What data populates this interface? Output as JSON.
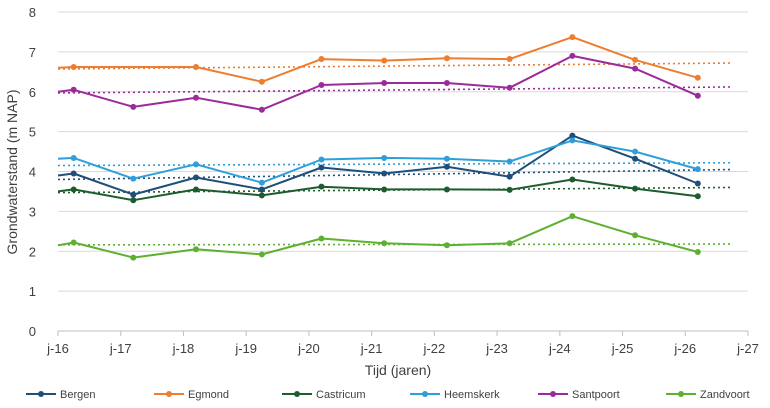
{
  "chart_data": {
    "type": "line",
    "title": "",
    "xlabel": "Tijd (jaren)",
    "ylabel": "Grondwaterstand (m NAP)",
    "ylim": [
      0,
      8
    ],
    "yticks": [
      0,
      1,
      2,
      3,
      4,
      5,
      6,
      7,
      8
    ],
    "xlim": [
      2016,
      2027
    ],
    "xticks": [
      {
        "year": 2016,
        "label": "j-16"
      },
      {
        "year": 2017,
        "label": "j-17"
      },
      {
        "year": 2018,
        "label": "j-18"
      },
      {
        "year": 2019,
        "label": "j-19"
      },
      {
        "year": 2020,
        "label": "j-20"
      },
      {
        "year": 2021,
        "label": "j-21"
      },
      {
        "year": 2022,
        "label": "j-22"
      },
      {
        "year": 2023,
        "label": "j-23"
      },
      {
        "year": 2024,
        "label": "j-24"
      },
      {
        "year": 2025,
        "label": "j-25"
      },
      {
        "year": 2026,
        "label": "j-26"
      },
      {
        "year": 2027,
        "label": "j-27"
      }
    ],
    "grid": "horizontal",
    "legend": "bottom",
    "series": [
      {
        "name": "Bergen",
        "color": "#1f4e79",
        "points": [
          [
            2016.0,
            3.9
          ],
          [
            2016.25,
            3.95
          ],
          [
            2017.2,
            3.42
          ],
          [
            2018.2,
            3.85
          ],
          [
            2019.25,
            3.55
          ],
          [
            2020.2,
            4.1
          ],
          [
            2021.2,
            3.95
          ],
          [
            2022.2,
            4.12
          ],
          [
            2023.2,
            3.87
          ],
          [
            2024.2,
            4.9
          ],
          [
            2025.2,
            4.32
          ],
          [
            2026.2,
            3.7
          ]
        ],
        "trend": [
          3.8,
          4.05
        ]
      },
      {
        "name": "Egmond",
        "color": "#ed7d31",
        "points": [
          [
            2016.0,
            6.6
          ],
          [
            2016.25,
            6.62
          ],
          [
            2018.2,
            6.62
          ],
          [
            2019.25,
            6.25
          ],
          [
            2020.2,
            6.82
          ],
          [
            2021.2,
            6.78
          ],
          [
            2022.2,
            6.84
          ],
          [
            2023.2,
            6.82
          ],
          [
            2024.2,
            7.37
          ],
          [
            2025.2,
            6.8
          ],
          [
            2026.2,
            6.35
          ]
        ],
        "trend": [
          6.57,
          6.72
        ]
      },
      {
        "name": "Castricum",
        "color": "#1e5c2e",
        "points": [
          [
            2016.0,
            3.5
          ],
          [
            2016.25,
            3.55
          ],
          [
            2017.2,
            3.28
          ],
          [
            2018.2,
            3.55
          ],
          [
            2019.25,
            3.4
          ],
          [
            2020.2,
            3.62
          ],
          [
            2021.2,
            3.55
          ],
          [
            2022.2,
            3.55
          ],
          [
            2023.2,
            3.54
          ],
          [
            2024.2,
            3.8
          ],
          [
            2025.2,
            3.57
          ],
          [
            2026.2,
            3.38
          ]
        ],
        "trend": [
          3.47,
          3.6
        ]
      },
      {
        "name": "Heemskerk",
        "color": "#2e9fd9",
        "points": [
          [
            2016.0,
            4.32
          ],
          [
            2016.25,
            4.34
          ],
          [
            2017.2,
            3.82
          ],
          [
            2018.2,
            4.18
          ],
          [
            2019.25,
            3.72
          ],
          [
            2020.2,
            4.3
          ],
          [
            2021.2,
            4.34
          ],
          [
            2022.2,
            4.32
          ],
          [
            2023.2,
            4.25
          ],
          [
            2024.2,
            4.78
          ],
          [
            2025.2,
            4.5
          ],
          [
            2026.2,
            4.06
          ]
        ],
        "trend": [
          4.15,
          4.22
        ]
      },
      {
        "name": "Santpoort",
        "color": "#9b2b9b",
        "points": [
          [
            2016.0,
            6.0
          ],
          [
            2016.25,
            6.05
          ],
          [
            2017.2,
            5.62
          ],
          [
            2018.2,
            5.85
          ],
          [
            2019.25,
            5.55
          ],
          [
            2020.2,
            6.17
          ],
          [
            2021.2,
            6.22
          ],
          [
            2022.2,
            6.22
          ],
          [
            2023.2,
            6.1
          ],
          [
            2024.2,
            6.9
          ],
          [
            2025.2,
            6.58
          ],
          [
            2026.2,
            5.9
          ]
        ],
        "trend": [
          5.97,
          6.12
        ]
      },
      {
        "name": "Zandvoort",
        "color": "#5db030",
        "points": [
          [
            2016.0,
            2.15
          ],
          [
            2016.25,
            2.22
          ],
          [
            2017.2,
            1.84
          ],
          [
            2018.2,
            2.05
          ],
          [
            2019.25,
            1.92
          ],
          [
            2020.2,
            2.32
          ],
          [
            2021.2,
            2.2
          ],
          [
            2022.2,
            2.15
          ],
          [
            2023.2,
            2.2
          ],
          [
            2024.2,
            2.88
          ],
          [
            2025.2,
            2.4
          ],
          [
            2026.2,
            1.98
          ]
        ],
        "trend": [
          2.16,
          2.18
        ]
      }
    ]
  }
}
